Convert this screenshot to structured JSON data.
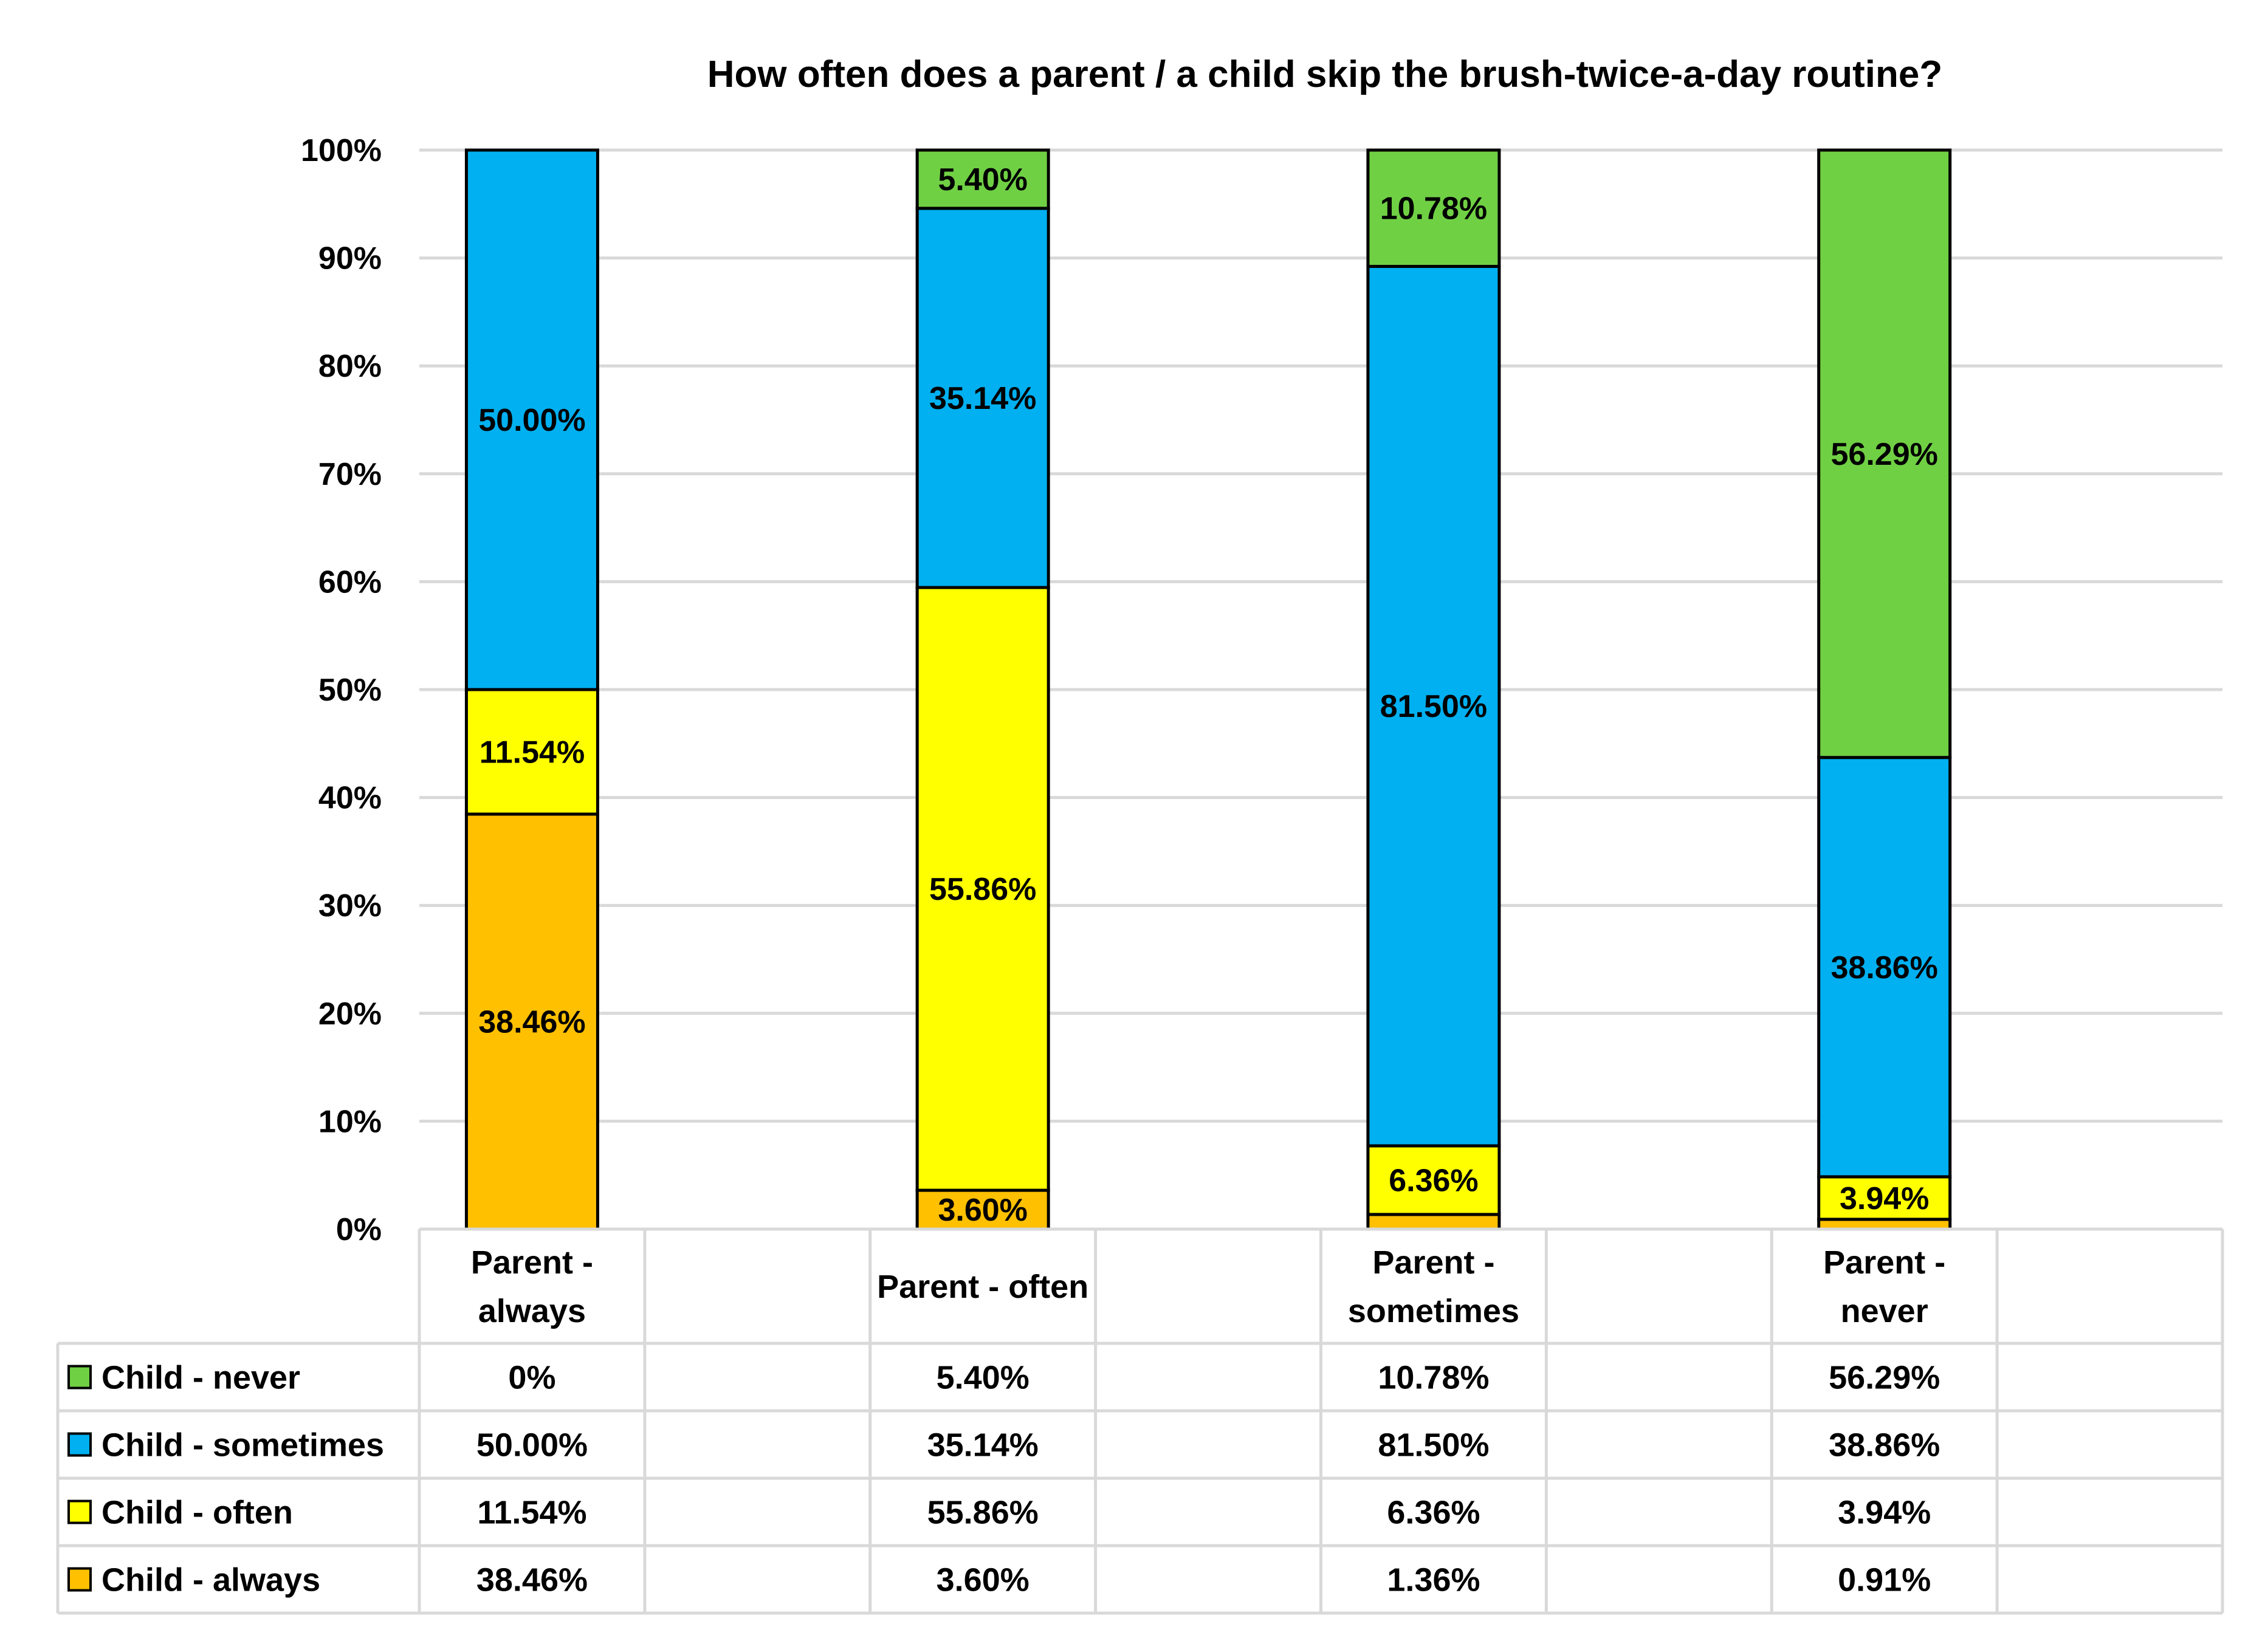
{
  "chart_data": {
    "type": "bar",
    "stacked": true,
    "percent_stacked": true,
    "title": "How often does a parent / a child skip the brush-twice-a-day routine?",
    "xlabel": "",
    "ylabel": "",
    "ylim": [
      0,
      100
    ],
    "yticks": [
      "0%",
      "10%",
      "20%",
      "30%",
      "40%",
      "50%",
      "60%",
      "70%",
      "80%",
      "90%",
      "100%"
    ],
    "grid": true,
    "legend_placement": "data table at bottom",
    "categories": [
      {
        "lines": [
          "Parent -",
          "always"
        ]
      },
      {
        "lines": [
          "Parent - often"
        ]
      },
      {
        "lines": [
          "Parent -",
          "sometimes"
        ]
      },
      {
        "lines": [
          "Parent -",
          "never"
        ]
      }
    ],
    "series": [
      {
        "name": "Child - always",
        "color": "#FFC000",
        "values": [
          38.46,
          3.6,
          1.36,
          0.91
        ],
        "table_labels": [
          "38.46%",
          "3.60%",
          "1.36%",
          "0.91%"
        ],
        "bar_labels": [
          "38.46%",
          "3.60%",
          "",
          ""
        ]
      },
      {
        "name": "Child - often",
        "color": "#FFFF00",
        "values": [
          11.54,
          55.86,
          6.36,
          3.94
        ],
        "table_labels": [
          "11.54%",
          "55.86%",
          "6.36%",
          "3.94%"
        ],
        "bar_labels": [
          "11.54%",
          "55.86%",
          "6.36%",
          "3.94%"
        ]
      },
      {
        "name": "Child - sometimes",
        "color": "#00B0F0",
        "values": [
          50.0,
          35.14,
          81.5,
          38.86
        ],
        "table_labels": [
          "50.00%",
          "35.14%",
          "81.50%",
          "38.86%"
        ],
        "bar_labels": [
          "50.00%",
          "35.14%",
          "81.50%",
          "38.86%"
        ]
      },
      {
        "name": "Child - never",
        "color": "#70D044",
        "values": [
          0,
          5.4,
          10.78,
          56.29
        ],
        "table_labels": [
          "0%",
          "5.40%",
          "10.78%",
          "56.29%"
        ],
        "bar_labels": [
          "",
          "5.40%",
          "10.78%",
          "56.29%"
        ]
      }
    ],
    "table_row_order": [
      "Child - never",
      "Child - sometimes",
      "Child - often",
      "Child - always"
    ]
  }
}
